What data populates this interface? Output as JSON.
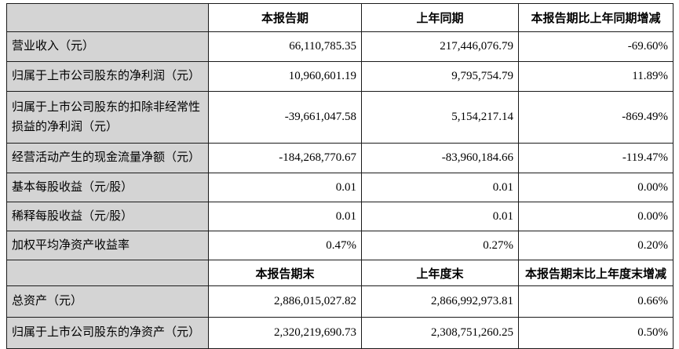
{
  "table": {
    "period_section": {
      "header": {
        "current": "本报告期",
        "prior": "上年同期",
        "change": "本报告期比上年同期增减"
      },
      "rows": [
        {
          "label": "营业收入（元）",
          "current": "66,110,785.35",
          "prior": "217,446,076.79",
          "change": "-69.60%"
        },
        {
          "label": "归属于上市公司股东的净利润（元）",
          "current": "10,960,601.19",
          "prior": "9,795,754.79",
          "change": "11.89%"
        },
        {
          "label": "归属于上市公司股东的扣除非经常性损益的净利润（元）",
          "current": "-39,661,047.58",
          "prior": "5,154,217.14",
          "change": "-869.49%"
        },
        {
          "label": "经营活动产生的现金流量净额（元）",
          "current": "-184,268,770.67",
          "prior": "-83,960,184.66",
          "change": "-119.47%"
        },
        {
          "label": "基本每股收益（元/股）",
          "current": "0.01",
          "prior": "0.01",
          "change": "0.00%"
        },
        {
          "label": "稀释每股收益（元/股）",
          "current": "0.01",
          "prior": "0.01",
          "change": "0.00%"
        },
        {
          "label": "加权平均净资产收益率",
          "current": "0.47%",
          "prior": "0.27%",
          "change": "0.20%"
        }
      ]
    },
    "period_end_section": {
      "header": {
        "current": "本报告期末",
        "prior": "上年度末",
        "change": "本报告期末比上年度末增减"
      },
      "rows": [
        {
          "label": "总资产（元）",
          "current": "2,886,015,027.82",
          "prior": "2,866,992,973.81",
          "change": "0.66%"
        },
        {
          "label": "归属于上市公司股东的净资产（元）",
          "current": "2,320,219,690.73",
          "prior": "2,308,751,260.25",
          "change": "0.50%"
        }
      ]
    },
    "colors": {
      "label_bg": "#d4d4d4",
      "cell_bg": "#ffffff",
      "border": "#1a1a1a"
    }
  }
}
